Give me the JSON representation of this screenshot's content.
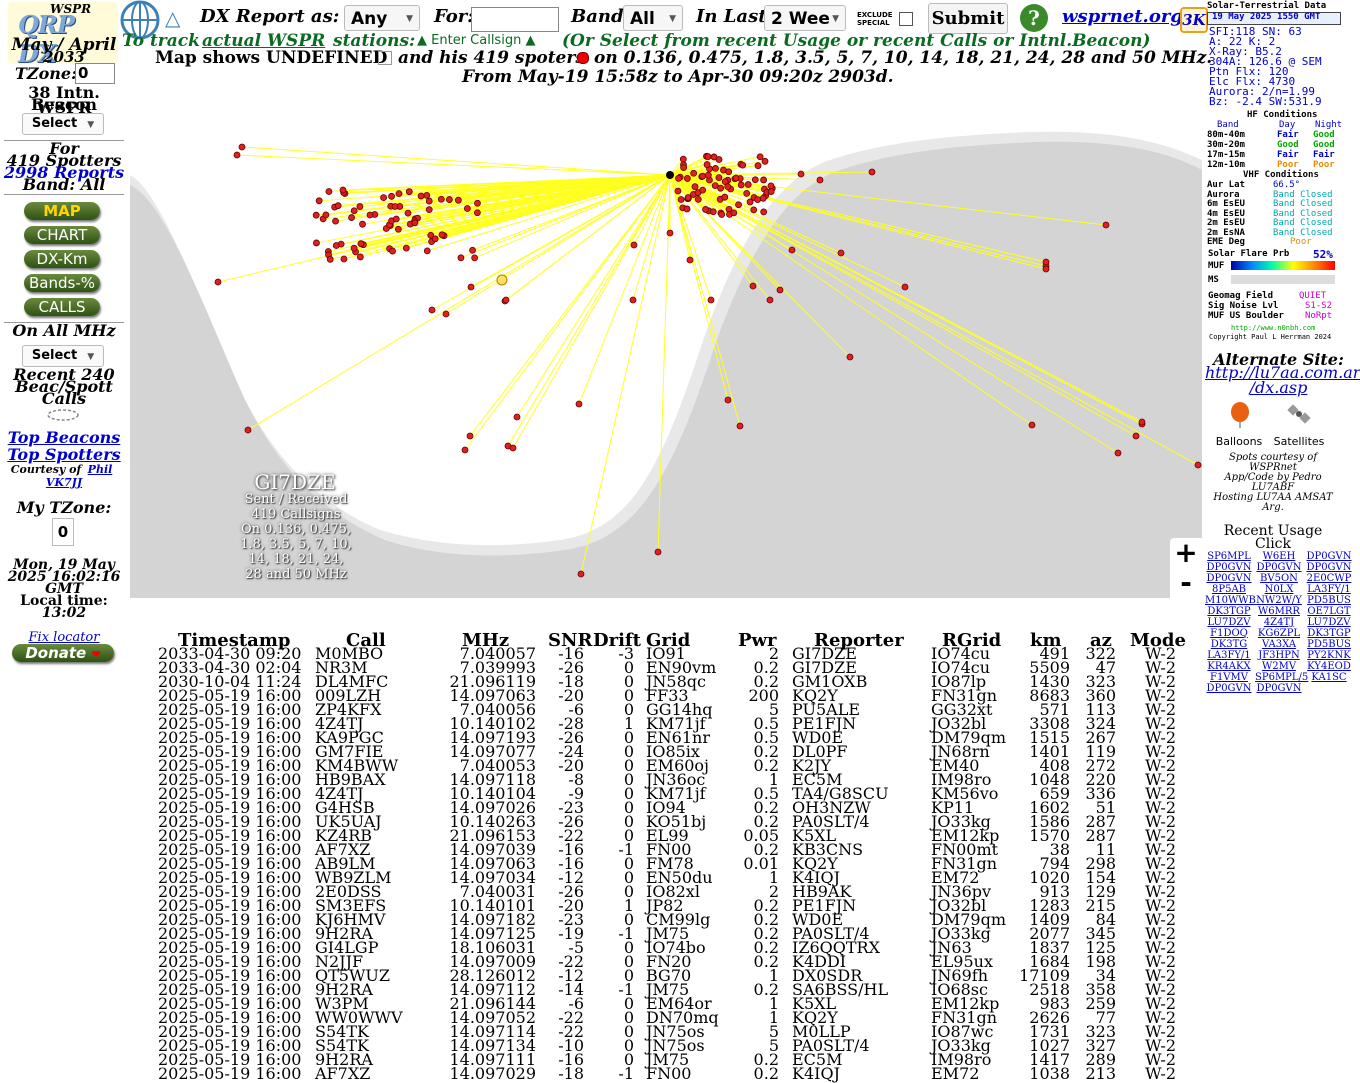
{
  "left": {
    "logo_top": "WSPR",
    "logo_main": "QRP DX",
    "date": "May / April",
    "year": "2033",
    "tzone_label": "TZone:",
    "tzone_value": "0",
    "beacon_project": [
      "38 Intn. WSPR",
      "Beacon Project"
    ],
    "select_label": "Select",
    "for_line": "For",
    "spotters": "419 Spotters",
    "reports": "2998 Reports",
    "band": "Band: All",
    "buttons": [
      "MAP",
      "CHART",
      "DX-Km",
      "Bands-%",
      "CALLS"
    ],
    "on_all": "On All MHz",
    "select2_label": "Select",
    "recent": [
      "Recent 240",
      "Beac/Spott",
      "Calls"
    ],
    "top_beacons": "Top Beacons",
    "top_spotters": "Top Spotters",
    "courtesy": "Courtesy of",
    "courtesy_name": "Phil",
    "courtesy_call": "VK7JJ",
    "my_tzone": "My TZone:",
    "my_tzone_val": "0",
    "local_date": [
      "Mon, 19 May",
      "2025 16:02:16",
      "GMT"
    ],
    "local_time_label": "Local time:",
    "local_time": "13:02",
    "fix_locator": "Fix locator",
    "donate": "Donate"
  },
  "header": {
    "dx_report": "DX Report as:",
    "as_value": "Any",
    "for_label": "For:",
    "for_value": "",
    "band_label": "Band:",
    "band_value": "All",
    "in_last_label": "In Last:",
    "in_last_value": "2 Wee",
    "exclude_special": "EXCLUDE SPECIAL",
    "submit": "Submit",
    "help": "?",
    "site_link": "wsprnet.org",
    "badge_3k": "3K",
    "to_track": "To track",
    "actual_wspr": "actual WSPR",
    "stations": "stations:",
    "enter_callsign": "Enter Callsign",
    "or_select": "(Or Select from recent Usage or recent Calls or Intnl.Beacon)",
    "map_shows": "Map shows UNDEFINED",
    "and_his": "and his 419 spoters",
    "on_freqs": "on 0.136, 0.475, 1.8, 3.5, 5, 7, 10, 14, 18, 21, 24, 28 and 50 MHz.",
    "from_to": "From May-19 15:58z to Apr-30 09:20z 2903d."
  },
  "map": {
    "callsign": "GI7DZE",
    "caption": [
      "Sent / Received",
      "419 Callsigns",
      "On 0.136, 0.475,",
      "1.8, 3.5, 5, 7, 10,",
      "14, 18, 21, 24,",
      "28 and 50 MHz"
    ],
    "zoom_in": "+",
    "zoom_out": "-"
  },
  "table": {
    "headers": [
      "Timestamp",
      "Call",
      "MHz",
      "SNR",
      "Drift",
      "Grid",
      "Pwr",
      "Reporter",
      "RGrid",
      "km",
      "az",
      "Mode"
    ],
    "rows": [
      [
        "2033-04-30 09:20",
        "M0MBO",
        "7.040057",
        "-16",
        "-3",
        "IO91",
        "2",
        "GI7DZE",
        "IO74cu",
        "491",
        "322",
        "W-2"
      ],
      [
        "2033-04-30 02:04",
        "NR3M",
        "7.039993",
        "-26",
        "0",
        "EN90vm",
        "0.2",
        "GI7DZE",
        "IO74cu",
        "5509",
        "47",
        "W-2"
      ],
      [
        "2030-10-04 11:24",
        "DL4MFC",
        "21.096119",
        "-18",
        "0",
        "JN58qc",
        "0.2",
        "GM1OXB",
        "IO87lp",
        "1430",
        "323",
        "W-2"
      ],
      [
        "2025-05-19 16:00",
        "009LZH",
        "14.097063",
        "-20",
        "0",
        "FF33",
        "200",
        "KQ2Y",
        "FN31gn",
        "8683",
        "360",
        "W-2"
      ],
      [
        "2025-05-19 16:00",
        "ZP4KFX",
        "7.040056",
        "-6",
        "0",
        "GG14hq",
        "5",
        "PU5ALE",
        "GG32xt",
        "571",
        "113",
        "W-2"
      ],
      [
        "2025-05-19 16:00",
        "4Z4TJ",
        "10.140102",
        "-28",
        "1",
        "KM71jf",
        "0.5",
        "PE1FJN",
        "JO32bl",
        "3308",
        "324",
        "W-2"
      ],
      [
        "2025-05-19 16:00",
        "KA9PGC",
        "14.097193",
        "-26",
        "0",
        "EN61nr",
        "0.5",
        "WD0E",
        "DM79qm",
        "1515",
        "267",
        "W-2"
      ],
      [
        "2025-05-19 16:00",
        "GM7FIE",
        "14.097077",
        "-24",
        "0",
        "IO85ix",
        "0.2",
        "DL0PF",
        "JN68rn",
        "1401",
        "119",
        "W-2"
      ],
      [
        "2025-05-19 16:00",
        "KM4BWW",
        "7.040053",
        "-20",
        "0",
        "EM60oj",
        "0.2",
        "K2JY",
        "EM40",
        "408",
        "272",
        "W-2"
      ],
      [
        "2025-05-19 16:00",
        "HB9BAX",
        "14.097118",
        "-8",
        "0",
        "JN36oc",
        "1",
        "EC5M",
        "IM98ro",
        "1048",
        "220",
        "W-2"
      ],
      [
        "2025-05-19 16:00",
        "4Z4TJ",
        "10.140104",
        "-9",
        "0",
        "KM71jf",
        "0.5",
        "TA4/G8SCU",
        "KM56vo",
        "659",
        "336",
        "W-2"
      ],
      [
        "2025-05-19 16:00",
        "G4HSB",
        "14.097026",
        "-23",
        "0",
        "IO94",
        "0.2",
        "OH3NZW",
        "KP11",
        "1602",
        "51",
        "W-2"
      ],
      [
        "2025-05-19 16:00",
        "UK5UAJ",
        "10.140263",
        "-26",
        "0",
        "KO51bj",
        "0.2",
        "PA0SLT/4",
        "JO33kg",
        "1586",
        "287",
        "W-2"
      ],
      [
        "2025-05-19 16:00",
        "KZ4RB",
        "21.096153",
        "-22",
        "0",
        "EL99",
        "0.05",
        "K5XL",
        "EM12kp",
        "1570",
        "287",
        "W-2"
      ],
      [
        "2025-05-19 16:00",
        "AF7XZ",
        "14.097039",
        "-16",
        "-1",
        "FN00",
        "0.2",
        "KB3CNS",
        "FN00mt",
        "38",
        "11",
        "W-2"
      ],
      [
        "2025-05-19 16:00",
        "AB9LM",
        "14.097063",
        "-16",
        "0",
        "FM78",
        "0.01",
        "KQ2Y",
        "FN31gn",
        "794",
        "298",
        "W-2"
      ],
      [
        "2025-05-19 16:00",
        "WB9ZLM",
        "14.097034",
        "-12",
        "0",
        "EN50du",
        "1",
        "K4IQJ",
        "EM72",
        "1020",
        "154",
        "W-2"
      ],
      [
        "2025-05-19 16:00",
        "2E0DSS",
        "7.040031",
        "-26",
        "0",
        "IO82xl",
        "2",
        "HB9AK",
        "JN36pv",
        "913",
        "129",
        "W-2"
      ],
      [
        "2025-05-19 16:00",
        "SM3EFS",
        "10.140101",
        "-20",
        "1",
        "JP82",
        "0.2",
        "PE1FJN",
        "JO32bl",
        "1283",
        "215",
        "W-2"
      ],
      [
        "2025-05-19 16:00",
        "KJ6HMV",
        "14.097182",
        "-23",
        "0",
        "CM99lg",
        "0.2",
        "WD0E",
        "DM79qm",
        "1409",
        "84",
        "W-2"
      ],
      [
        "2025-05-19 16:00",
        "9H2RA",
        "14.097125",
        "-19",
        "-1",
        "JM75",
        "0.2",
        "PA0SLT/4",
        "JO33kg",
        "2077",
        "345",
        "W-2"
      ],
      [
        "2025-05-19 16:00",
        "GI4LGP",
        "18.106031",
        "-5",
        "0",
        "IO74bo",
        "0.2",
        "IZ6QQTRX",
        "JN63",
        "1837",
        "125",
        "W-2"
      ],
      [
        "2025-05-19 16:00",
        "N2JJF",
        "14.097009",
        "-22",
        "0",
        "FN20",
        "0.2",
        "K4DDI",
        "EL95ux",
        "1684",
        "198",
        "W-2"
      ],
      [
        "2025-05-19 16:00",
        "QT5WUZ",
        "28.126012",
        "-12",
        "0",
        "BG70",
        "1",
        "DX0SDR",
        "JN69fh",
        "17109",
        "34",
        "W-2"
      ],
      [
        "2025-05-19 16:00",
        "9H2RA",
        "14.097112",
        "-14",
        "-1",
        "JM75",
        "0.2",
        "SA6BSS/HL",
        "IO68sc",
        "2518",
        "358",
        "W-2"
      ],
      [
        "2025-05-19 16:00",
        "W3PM",
        "21.096144",
        "-6",
        "0",
        "EM64or",
        "1",
        "K5XL",
        "EM12kp",
        "983",
        "259",
        "W-2"
      ],
      [
        "2025-05-19 16:00",
        "WW0WWV",
        "14.097052",
        "-22",
        "0",
        "DN70mq",
        "1",
        "KQ2Y",
        "FN31gn",
        "2626",
        "77",
        "W-2"
      ],
      [
        "2025-05-19 16:00",
        "S54TK",
        "14.097114",
        "-22",
        "0",
        "JN75os",
        "5",
        "M0LLP",
        "IO87wc",
        "1731",
        "323",
        "W-2"
      ],
      [
        "2025-05-19 16:00",
        "S54TK",
        "14.097134",
        "-10",
        "0",
        "JN75os",
        "5",
        "PA0SLT/4",
        "JO33kg",
        "1027",
        "327",
        "W-2"
      ],
      [
        "2025-05-19 16:00",
        "9H2RA",
        "14.097111",
        "-16",
        "0",
        "JM75",
        "0.2",
        "EC5M",
        "IM98ro",
        "1417",
        "289",
        "W-2"
      ],
      [
        "2025-05-19 16:00",
        "AF7XZ",
        "14.097029",
        "-18",
        "-1",
        "FN00",
        "0.2",
        "K4IQJ",
        "EM72",
        "1038",
        "213",
        "W-2"
      ]
    ]
  },
  "right": {
    "solar_title": "Solar-Terrestrial Data",
    "solar_date": "19 May 2025 1550 GMT",
    "solar_lines": [
      "SFI:118 SN: 63",
      "A: 22 K: 2",
      "X-Ray: B5.2",
      "304A: 126.6 @ SEM",
      "Ptn Flx: 120",
      "Elc Flx: 4730",
      "Aurora: 2/n=1.99",
      "Bz: -2.4 SW:531.9"
    ],
    "hf_title": "HF Conditions",
    "hf_header": [
      "Band",
      "Day",
      "Night"
    ],
    "hf_rows": [
      [
        "80m-40m",
        "Fair",
        "Good"
      ],
      [
        "30m-20m",
        "Good",
        "Good"
      ],
      [
        "17m-15m",
        "Fair",
        "Fair"
      ],
      [
        "12m-10m",
        "Poor",
        "Poor"
      ]
    ],
    "vhf_title": "VHF Conditions",
    "vhf_rows": [
      [
        "Aur Lat",
        "66.5°"
      ],
      [
        "Aurora",
        "Band Closed"
      ],
      [
        "6m EsEU",
        "Band Closed"
      ],
      [
        "4m EsEU",
        "Band Closed"
      ],
      [
        "2m EsEU",
        "Band Closed"
      ],
      [
        "2m EsNA",
        "Band Closed"
      ],
      [
        "EME Deg",
        "Poor"
      ]
    ],
    "flare": [
      "Solar Flare Prb",
      "52%"
    ],
    "muf": "MUF",
    "ms": "MS",
    "geomag": [
      "Geomag Field",
      "QUIET"
    ],
    "sig_noise": [
      "Sig Noise Lvl",
      "S1-S2"
    ],
    "muf_boulder": [
      "MUF US Boulder",
      "NoRpt"
    ],
    "site": "http://www.n0nbh.com",
    "copyright": "Copyright Paul L Herrman 2024",
    "alt_site": "Alternate Site:",
    "alt_url": [
      "http://lu7aa.com.ar",
      "/dx.asp"
    ],
    "balloons": "Balloons",
    "satellites": "Satellites",
    "spots_courtesy": [
      "Spots courtesy of",
      "WSPRnet",
      "App/Code by Pedro",
      "LU7ABF",
      "Hosting LU7AA AMSAT Arg."
    ],
    "recent_usage": "Recent Usage",
    "click": "Click",
    "usage_calls": [
      [
        "SP6MPL",
        "W6EH",
        "DP0GVN"
      ],
      [
        "DP0GVN",
        "DP0GVN",
        "DP0GVN"
      ],
      [
        "DP0GVN",
        "BV5ON",
        "2E0CWP"
      ],
      [
        "8P5AB",
        "N0LX",
        "LA3FY/1"
      ],
      [
        "M10WWB",
        "NW2W/Y",
        "PD5BUS"
      ],
      [
        "DK3TGP",
        "W6MRR",
        "OE7LGT"
      ],
      [
        "LU7DZV",
        "4Z4TJ",
        "LU7DZV"
      ],
      [
        "F1DOQ",
        "KG6ZPL",
        "DK3TGP"
      ],
      [
        "DK3TG",
        "VA3XA",
        "PD5BUS"
      ],
      [
        "LA3FY/1",
        "JF3HPN",
        "PY2KNK"
      ],
      [
        "KR4AKX",
        "W2MV",
        "KY4EOD"
      ],
      [
        "F1VMV",
        "SP6MPL/5",
        "KA1SC"
      ],
      [
        "DP0GVN",
        "DP0GVN",
        ""
      ]
    ]
  }
}
